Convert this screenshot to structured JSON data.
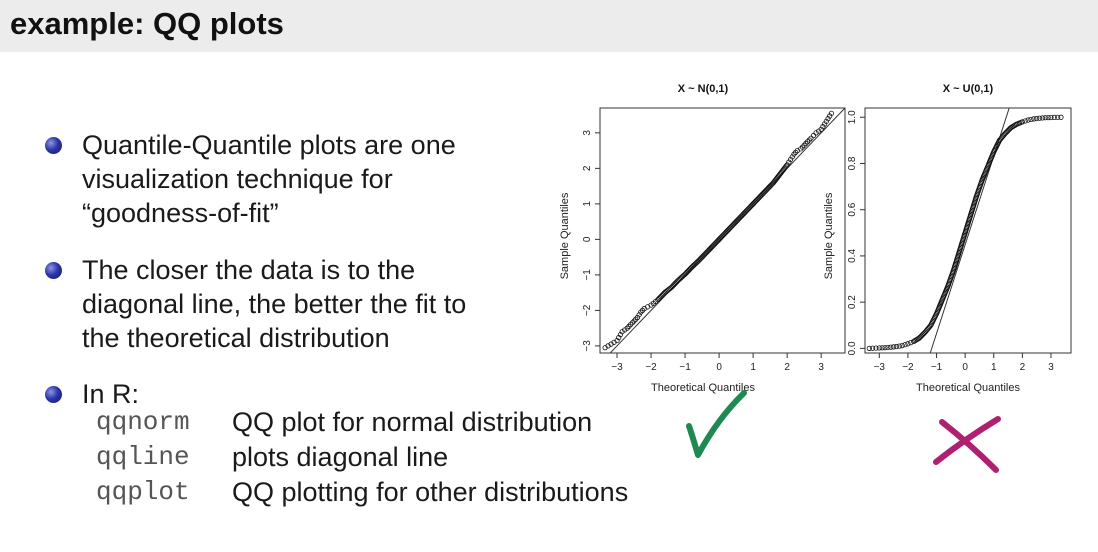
{
  "slide": {
    "title": "example: QQ plots"
  },
  "bullets": [
    {
      "lines": [
        "Quantile-Quantile plots are one",
        "visualization technique for",
        "“goodness-of-fit”"
      ]
    },
    {
      "lines": [
        "The closer the data is to the",
        "diagonal line, the better the fit to",
        "the theoretical distribution"
      ]
    },
    {
      "lines": [
        "In R:"
      ]
    }
  ],
  "r_commands": [
    {
      "name": "qqnorm",
      "desc": "QQ plot for normal distribution"
    },
    {
      "name": "qqline",
      "desc": "plots diagonal line"
    },
    {
      "name": "qqplot",
      "desc": "QQ plotting for other distributions"
    }
  ],
  "marks": {
    "good": "#1e8a52",
    "bad": "#b02070"
  },
  "chart_data": [
    {
      "type": "scatter",
      "title": "X ~ N(0,1)",
      "xlabel": "Theoretical Quantiles",
      "ylabel": "Sample Quantiles",
      "xlim": [
        -3.5,
        3.7
      ],
      "ylim": [
        -3.2,
        3.7
      ],
      "xticks": [
        -3,
        -2,
        -1,
        0,
        1,
        2,
        3
      ],
      "yticks": [
        -3,
        -2,
        -1,
        0,
        1,
        2,
        3
      ],
      "ytick_labels": [
        "−3",
        "−2",
        "−1",
        "0",
        "1",
        "2",
        "3"
      ],
      "xtick_labels": [
        "−3",
        "−2",
        "−1",
        "0",
        "1",
        "2",
        "3"
      ],
      "points": [
        [
          -3.35,
          -3.05
        ],
        [
          -3.0,
          -2.85
        ],
        [
          -2.85,
          -2.6
        ],
        [
          -2.7,
          -2.5
        ],
        [
          -2.6,
          -2.4
        ],
        [
          -2.5,
          -2.3
        ],
        [
          -2.4,
          -2.2
        ],
        [
          -2.3,
          -2.05
        ],
        [
          -2.2,
          -1.95
        ],
        [
          -2.1,
          -1.9
        ],
        [
          -2.0,
          -1.85
        ],
        [
          -1.8,
          -1.7
        ],
        [
          -1.6,
          -1.5
        ],
        [
          -1.4,
          -1.35
        ],
        [
          -1.2,
          -1.15
        ],
        [
          -1.0,
          -0.98
        ],
        [
          -0.8,
          -0.78
        ],
        [
          -0.6,
          -0.6
        ],
        [
          -0.4,
          -0.4
        ],
        [
          -0.2,
          -0.2
        ],
        [
          0.0,
          0.0
        ],
        [
          0.2,
          0.2
        ],
        [
          0.4,
          0.4
        ],
        [
          0.6,
          0.6
        ],
        [
          0.8,
          0.8
        ],
        [
          1.0,
          1.0
        ],
        [
          1.2,
          1.2
        ],
        [
          1.4,
          1.4
        ],
        [
          1.6,
          1.6
        ],
        [
          1.8,
          1.85
        ],
        [
          2.0,
          2.1
        ],
        [
          2.1,
          2.25
        ],
        [
          2.2,
          2.4
        ],
        [
          2.3,
          2.5
        ],
        [
          2.4,
          2.55
        ],
        [
          2.5,
          2.65
        ],
        [
          2.6,
          2.75
        ],
        [
          2.7,
          2.85
        ],
        [
          2.85,
          3.0
        ],
        [
          3.0,
          3.1
        ],
        [
          3.3,
          3.55
        ]
      ],
      "reference_line": [
        [
          -3.5,
          -3.5
        ],
        [
          3.7,
          3.7
        ]
      ]
    },
    {
      "type": "scatter",
      "title": "X ~ U(0,1)",
      "xlabel": "Theoretical Quantiles",
      "ylabel": "Sample Quantiles",
      "xlim": [
        -3.5,
        3.7
      ],
      "ylim": [
        -0.02,
        1.04
      ],
      "xticks": [
        -3,
        -2,
        -1,
        0,
        1,
        2,
        3
      ],
      "yticks": [
        0.0,
        0.2,
        0.4,
        0.6,
        0.8,
        1.0
      ],
      "xtick_labels": [
        "−3",
        "−2",
        "−1",
        "0",
        "1",
        "2",
        "3"
      ],
      "ytick_labels": [
        "0.0",
        "0.2",
        "0.4",
        "0.6",
        "0.8",
        "1.0"
      ],
      "points": [
        [
          -3.35,
          0.0
        ],
        [
          -3.0,
          0.002
        ],
        [
          -2.8,
          0.003
        ],
        [
          -2.6,
          0.005
        ],
        [
          -2.4,
          0.008
        ],
        [
          -2.2,
          0.012
        ],
        [
          -2.0,
          0.02
        ],
        [
          -1.8,
          0.03
        ],
        [
          -1.6,
          0.045
        ],
        [
          -1.4,
          0.07
        ],
        [
          -1.2,
          0.1
        ],
        [
          -1.0,
          0.15
        ],
        [
          -0.8,
          0.21
        ],
        [
          -0.6,
          0.27
        ],
        [
          -0.4,
          0.34
        ],
        [
          -0.2,
          0.42
        ],
        [
          0.0,
          0.5
        ],
        [
          0.2,
          0.58
        ],
        [
          0.4,
          0.66
        ],
        [
          0.6,
          0.73
        ],
        [
          0.8,
          0.79
        ],
        [
          1.0,
          0.85
        ],
        [
          1.2,
          0.9
        ],
        [
          1.4,
          0.93
        ],
        [
          1.6,
          0.955
        ],
        [
          1.8,
          0.97
        ],
        [
          2.0,
          0.98
        ],
        [
          2.2,
          0.988
        ],
        [
          2.4,
          0.993
        ],
        [
          2.6,
          0.996
        ],
        [
          2.8,
          0.998
        ],
        [
          3.0,
          0.999
        ],
        [
          3.35,
          1.0
        ]
      ],
      "reference_line": [
        [
          -1.22,
          -0.02
        ],
        [
          1.54,
          1.04
        ]
      ]
    }
  ]
}
